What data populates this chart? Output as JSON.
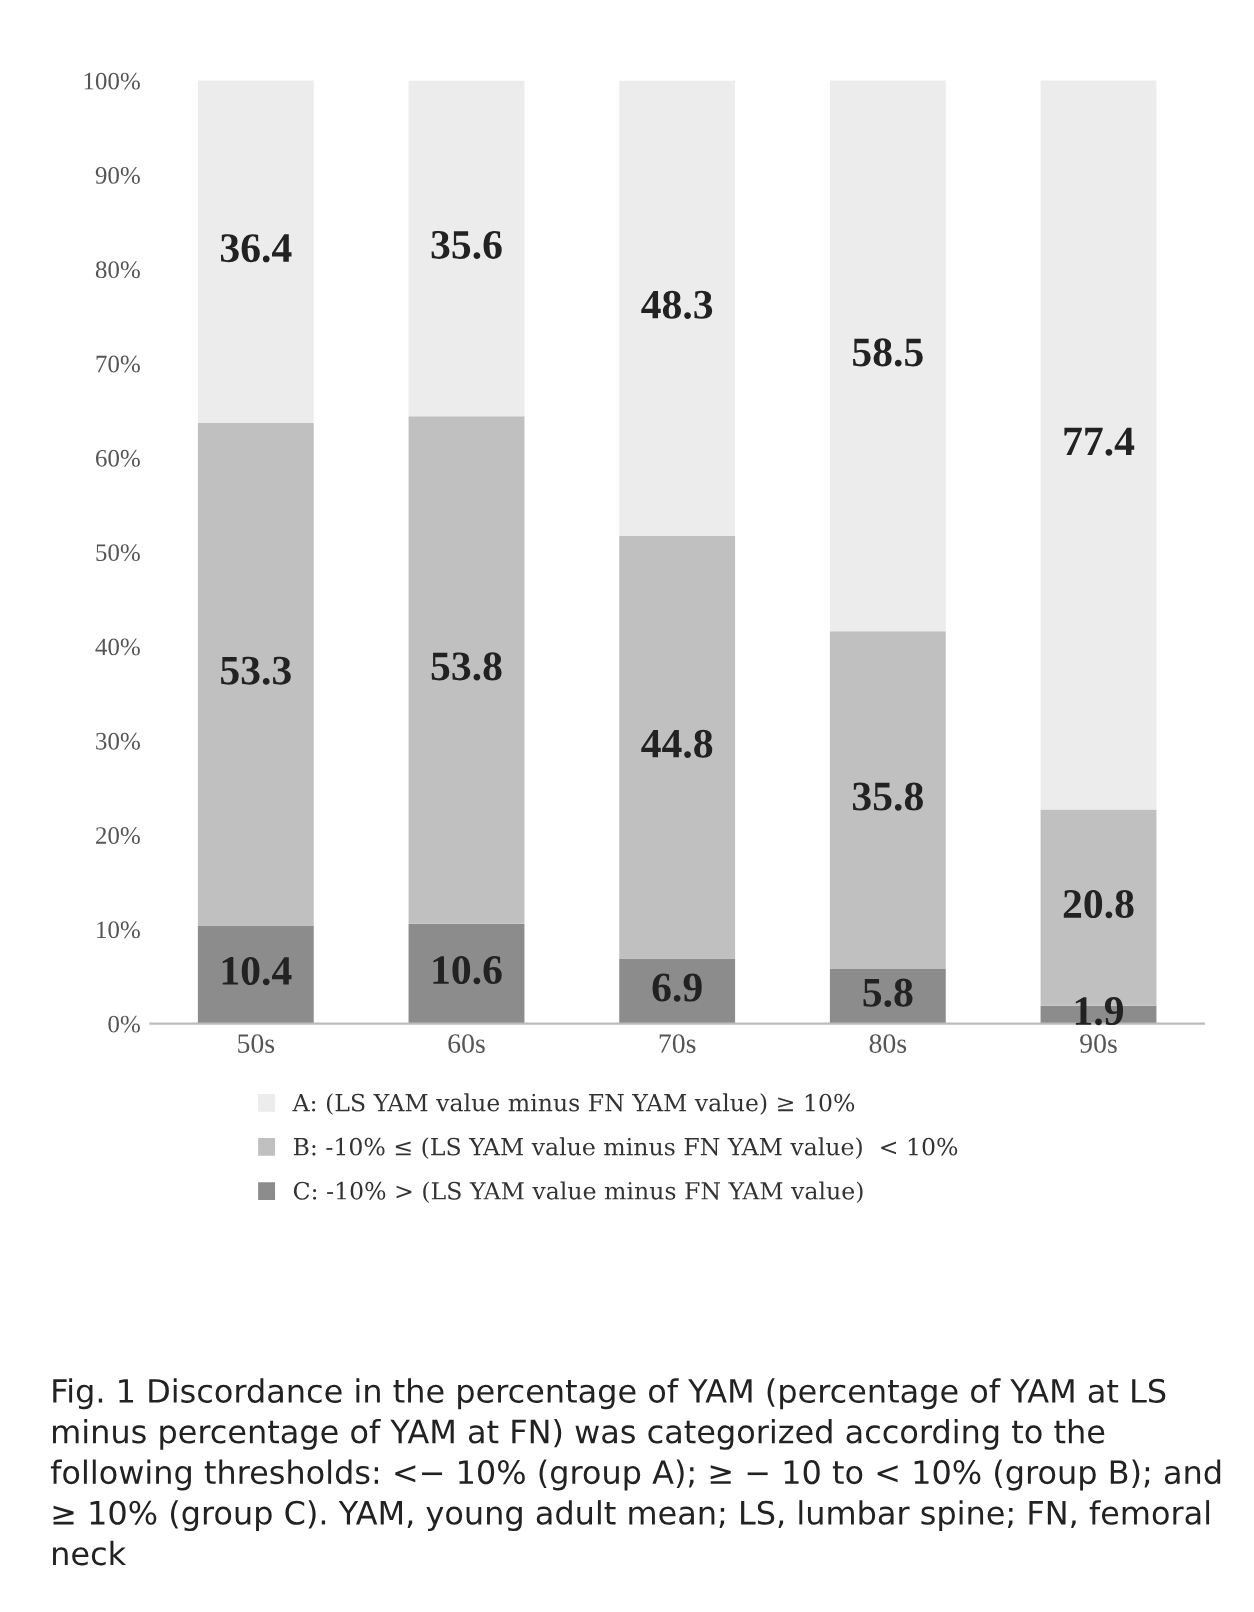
{
  "chart_data": {
    "type": "bar",
    "stacked": true,
    "categories": [
      "50s",
      "60s",
      "70s",
      "80s",
      "90s"
    ],
    "series": [
      {
        "name": "C: -10% > (LS YAM value minus FN YAM value)",
        "color": "#8c8c8c",
        "values": [
          10.4,
          10.6,
          6.9,
          5.8,
          1.9
        ]
      },
      {
        "name": "B: -10% ≤ (LS YAM value minus FN YAM value)  < 10%",
        "color": "#c0c0c0",
        "values": [
          53.3,
          53.8,
          44.8,
          35.8,
          20.8
        ]
      },
      {
        "name": "A: (LS YAM value minus FN YAM value) ≥ 10%",
        "color": "#ececec",
        "values": [
          36.4,
          35.6,
          48.3,
          58.5,
          77.4
        ]
      }
    ],
    "ylim": [
      0,
      100
    ],
    "yticks": [
      {
        "value": 0,
        "label": "0%"
      },
      {
        "value": 10,
        "label": "10%"
      },
      {
        "value": 20,
        "label": "20%"
      },
      {
        "value": 30,
        "label": "30%"
      },
      {
        "value": 40,
        "label": "40%"
      },
      {
        "value": 50,
        "label": "50%"
      },
      {
        "value": 60,
        "label": "60%"
      },
      {
        "value": 70,
        "label": "70%"
      },
      {
        "value": 80,
        "label": "80%"
      },
      {
        "value": 90,
        "label": "90%"
      },
      {
        "value": 100,
        "label": "100%"
      }
    ],
    "data_labels": true,
    "legend": "bottom",
    "grid": false,
    "annotations": [
      "Fig. 1 Discordance in the percentage of YAM (percentage of YAM at LS minus percentage of YAM at FN) was categorized according to the following thresholds: <− 10% (group A); ≥ − 10 to < 10% (group B); and ≥ 10% (group C). YAM, young adult mean; LS, lumbar spine; FN, femoral neck"
    ]
  }
}
